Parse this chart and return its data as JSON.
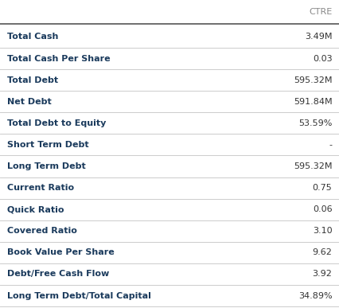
{
  "header": "CTRE",
  "rows": [
    {
      "label": "Total Cash",
      "value": "3.49M"
    },
    {
      "label": "Total Cash Per Share",
      "value": "0.03"
    },
    {
      "label": "Total Debt",
      "value": "595.32M"
    },
    {
      "label": "Net Debt",
      "value": "591.84M"
    },
    {
      "label": "Total Debt to Equity",
      "value": "53.59%"
    },
    {
      "label": "Short Term Debt",
      "value": "-"
    },
    {
      "label": "Long Term Debt",
      "value": "595.32M"
    },
    {
      "label": "Current Ratio",
      "value": "0.75"
    },
    {
      "label": "Quick Ratio",
      "value": "0.06"
    },
    {
      "label": "Covered Ratio",
      "value": "3.10"
    },
    {
      "label": "Book Value Per Share",
      "value": "9.62"
    },
    {
      "label": "Debt/Free Cash Flow",
      "value": "3.92"
    },
    {
      "label": "Long Term Debt/Total Capital",
      "value": "34.89%"
    }
  ],
  "bg_color": "#ffffff",
  "header_text_color": "#888888",
  "label_color": "#1a3a5c",
  "value_color": "#333333",
  "line_color": "#cccccc",
  "header_line_color": "#555555",
  "label_fontsize": 8.0,
  "value_fontsize": 8.0,
  "header_fontsize": 8.0
}
